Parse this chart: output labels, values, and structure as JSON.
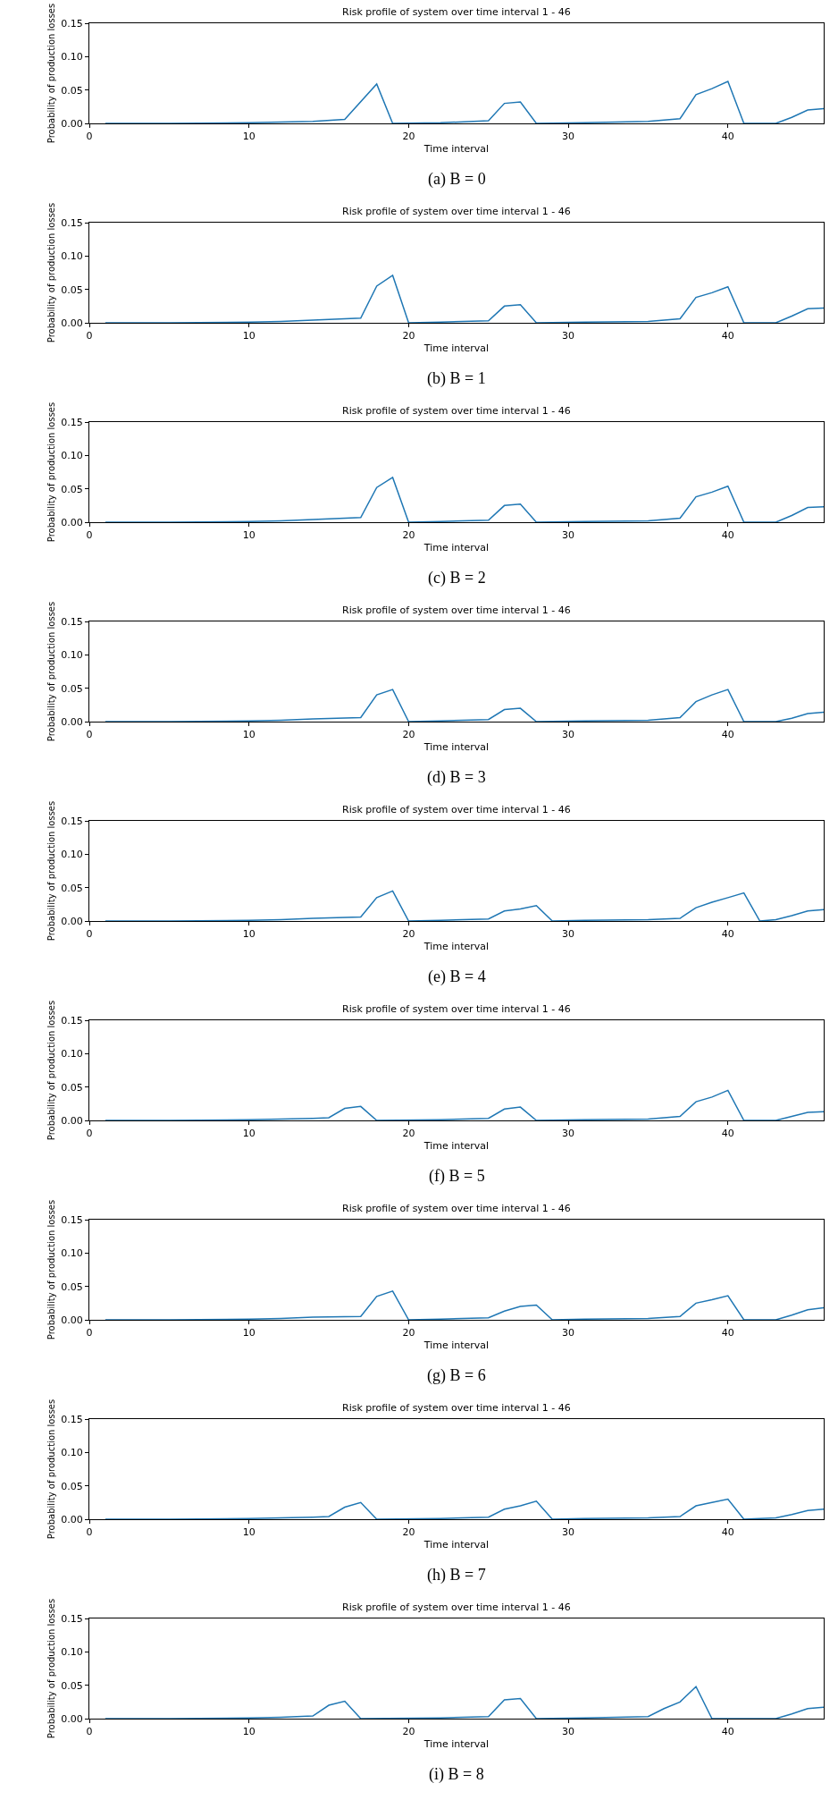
{
  "chart_data": [
    {
      "type": "line",
      "title": "Risk profile of system over time interval 1 - 46",
      "xlabel": "Time interval",
      "ylabel": "Probability of production losses",
      "annotations": [
        "(a) B = 0"
      ],
      "xlim": [
        0,
        46
      ],
      "xticks": [
        0,
        10,
        20,
        30,
        40
      ],
      "ylim": [
        0,
        0.15
      ],
      "yticks": [
        {
          "value": 0,
          "label": "0.00"
        },
        {
          "value": 0.05,
          "label": "0.05"
        },
        {
          "value": 0.1,
          "label": "0.10"
        },
        {
          "value": 0.15,
          "label": "0.15"
        }
      ],
      "series": [
        {
          "color": "#1f77b4",
          "x": [
            1,
            5,
            10,
            12,
            14,
            16,
            18,
            19,
            22,
            25,
            26,
            27,
            28,
            31,
            35,
            37,
            38,
            39,
            40,
            41,
            43,
            44,
            45,
            46
          ],
          "values": [
            0,
            0,
            0.001,
            0.002,
            0.003,
            0.006,
            0.059,
            0,
            0.001,
            0.004,
            0.03,
            0.032,
            0,
            0.001,
            0.003,
            0.007,
            0.043,
            0.052,
            0.063,
            0,
            0,
            0.009,
            0.02,
            0.022
          ]
        }
      ]
    },
    {
      "type": "line",
      "title": "Risk profile of system over time interval 1 - 46",
      "xlabel": "Time interval",
      "ylabel": "Probability of production losses",
      "annotations": [
        "(b) B = 1"
      ],
      "xlim": [
        0,
        46
      ],
      "xticks": [
        0,
        10,
        20,
        30,
        40
      ],
      "ylim": [
        0,
        0.15
      ],
      "yticks": [
        {
          "value": 0,
          "label": "0.00"
        },
        {
          "value": 0.05,
          "label": "0.05"
        },
        {
          "value": 0.1,
          "label": "0.10"
        },
        {
          "value": 0.15,
          "label": "0.15"
        }
      ],
      "series": [
        {
          "color": "#1f77b4",
          "x": [
            1,
            5,
            10,
            12,
            14,
            17,
            18,
            19,
            20,
            22,
            25,
            26,
            27,
            28,
            31,
            35,
            37,
            38,
            39,
            40,
            41,
            43,
            44,
            45,
            46
          ],
          "values": [
            0,
            0,
            0.001,
            0.002,
            0.004,
            0.007,
            0.055,
            0.071,
            0,
            0.001,
            0.003,
            0.025,
            0.027,
            0,
            0.001,
            0.002,
            0.006,
            0.038,
            0.045,
            0.054,
            0,
            0,
            0.01,
            0.021,
            0.022
          ]
        }
      ]
    },
    {
      "type": "line",
      "title": "Risk profile of system over time interval 1 - 46",
      "xlabel": "Time interval",
      "ylabel": "Probability of production losses",
      "annotations": [
        "(c) B = 2"
      ],
      "xlim": [
        0,
        46
      ],
      "xticks": [
        0,
        10,
        20,
        30,
        40
      ],
      "ylim": [
        0,
        0.15
      ],
      "yticks": [
        {
          "value": 0,
          "label": "0.00"
        },
        {
          "value": 0.05,
          "label": "0.05"
        },
        {
          "value": 0.1,
          "label": "0.10"
        },
        {
          "value": 0.15,
          "label": "0.15"
        }
      ],
      "series": [
        {
          "color": "#1f77b4",
          "x": [
            1,
            5,
            10,
            12,
            14,
            17,
            18,
            19,
            20,
            22,
            25,
            26,
            27,
            28,
            31,
            35,
            37,
            38,
            39,
            40,
            41,
            43,
            44,
            45,
            46
          ],
          "values": [
            0,
            0,
            0.001,
            0.002,
            0.004,
            0.007,
            0.052,
            0.067,
            0,
            0.001,
            0.003,
            0.025,
            0.027,
            0,
            0.001,
            0.002,
            0.006,
            0.038,
            0.045,
            0.054,
            0,
            0,
            0.01,
            0.022,
            0.023
          ]
        }
      ]
    },
    {
      "type": "line",
      "title": "Risk profile of system over time interval 1 - 46",
      "xlabel": "Time interval",
      "ylabel": "Probability of production losses",
      "annotations": [
        "(d) B = 3"
      ],
      "xlim": [
        0,
        46
      ],
      "xticks": [
        0,
        10,
        20,
        30,
        40
      ],
      "ylim": [
        0,
        0.15
      ],
      "yticks": [
        {
          "value": 0,
          "label": "0.00"
        },
        {
          "value": 0.05,
          "label": "0.05"
        },
        {
          "value": 0.1,
          "label": "0.10"
        },
        {
          "value": 0.15,
          "label": "0.15"
        }
      ],
      "series": [
        {
          "color": "#1f77b4",
          "x": [
            1,
            5,
            10,
            12,
            14,
            17,
            18,
            19,
            20,
            22,
            25,
            26,
            27,
            28,
            31,
            35,
            37,
            38,
            39,
            40,
            41,
            43,
            44,
            45,
            46
          ],
          "values": [
            0,
            0,
            0.001,
            0.002,
            0.004,
            0.006,
            0.04,
            0.048,
            0,
            0.001,
            0.003,
            0.018,
            0.02,
            0,
            0.001,
            0.002,
            0.006,
            0.03,
            0.04,
            0.048,
            0,
            0,
            0.005,
            0.012,
            0.014
          ]
        }
      ]
    },
    {
      "type": "line",
      "title": "Risk profile of system over time interval 1 - 46",
      "xlabel": "Time interval",
      "ylabel": "Probability of production losses",
      "annotations": [
        "(e) B = 4"
      ],
      "xlim": [
        0,
        46
      ],
      "xticks": [
        0,
        10,
        20,
        30,
        40
      ],
      "ylim": [
        0,
        0.15
      ],
      "yticks": [
        {
          "value": 0,
          "label": "0.00"
        },
        {
          "value": 0.05,
          "label": "0.05"
        },
        {
          "value": 0.1,
          "label": "0.10"
        },
        {
          "value": 0.15,
          "label": "0.15"
        }
      ],
      "series": [
        {
          "color": "#1f77b4",
          "x": [
            1,
            5,
            10,
            12,
            14,
            17,
            18,
            19,
            20,
            22,
            25,
            26,
            27,
            28,
            29,
            31,
            35,
            37,
            38,
            39,
            40,
            41,
            42,
            43,
            44,
            45,
            46
          ],
          "values": [
            0,
            0,
            0.001,
            0.002,
            0.004,
            0.006,
            0.035,
            0.045,
            0,
            0.001,
            0.003,
            0.015,
            0.018,
            0.023,
            0,
            0.001,
            0.002,
            0.004,
            0.02,
            0.028,
            0.035,
            0.042,
            0,
            0.002,
            0.008,
            0.015,
            0.017
          ]
        }
      ]
    },
    {
      "type": "line",
      "title": "Risk profile of system over time interval 1 - 46",
      "xlabel": "Time interval",
      "ylabel": "Probability of production losses",
      "annotations": [
        "(f) B = 5"
      ],
      "xlim": [
        0,
        46
      ],
      "xticks": [
        0,
        10,
        20,
        30,
        40
      ],
      "ylim": [
        0,
        0.15
      ],
      "yticks": [
        {
          "value": 0,
          "label": "0.00"
        },
        {
          "value": 0.05,
          "label": "0.05"
        },
        {
          "value": 0.1,
          "label": "0.10"
        },
        {
          "value": 0.15,
          "label": "0.15"
        }
      ],
      "series": [
        {
          "color": "#1f77b4",
          "x": [
            1,
            5,
            10,
            12,
            14,
            15,
            16,
            17,
            18,
            22,
            25,
            26,
            27,
            28,
            31,
            35,
            37,
            38,
            39,
            40,
            41,
            43,
            44,
            45,
            46
          ],
          "values": [
            0,
            0,
            0.001,
            0.002,
            0.003,
            0.004,
            0.018,
            0.021,
            0,
            0.001,
            0.003,
            0.017,
            0.02,
            0,
            0.001,
            0.002,
            0.006,
            0.028,
            0.035,
            0.045,
            0,
            0,
            0.006,
            0.012,
            0.013
          ]
        }
      ]
    },
    {
      "type": "line",
      "title": "Risk profile of system over time interval 1 - 46",
      "xlabel": "Time interval",
      "ylabel": "Probability of production losses",
      "annotations": [
        "(g) B = 6"
      ],
      "xlim": [
        0,
        46
      ],
      "xticks": [
        0,
        10,
        20,
        30,
        40
      ],
      "ylim": [
        0,
        0.15
      ],
      "yticks": [
        {
          "value": 0,
          "label": "0.00"
        },
        {
          "value": 0.05,
          "label": "0.05"
        },
        {
          "value": 0.1,
          "label": "0.10"
        },
        {
          "value": 0.15,
          "label": "0.15"
        }
      ],
      "series": [
        {
          "color": "#1f77b4",
          "x": [
            1,
            5,
            10,
            12,
            14,
            17,
            18,
            19,
            20,
            22,
            25,
            26,
            27,
            28,
            29,
            31,
            35,
            37,
            38,
            39,
            40,
            41,
            43,
            44,
            45,
            46
          ],
          "values": [
            0,
            0,
            0.001,
            0.002,
            0.004,
            0.005,
            0.035,
            0.043,
            0,
            0.001,
            0.003,
            0.013,
            0.02,
            0.022,
            0,
            0.001,
            0.002,
            0.005,
            0.025,
            0.03,
            0.036,
            0,
            0,
            0.007,
            0.015,
            0.018
          ]
        }
      ]
    },
    {
      "type": "line",
      "title": "Risk profile of system over time interval 1 - 46",
      "xlabel": "Time interval",
      "ylabel": "Probability of production losses",
      "annotations": [
        "(h) B = 7"
      ],
      "xlim": [
        0,
        46
      ],
      "xticks": [
        0,
        10,
        20,
        30,
        40
      ],
      "ylim": [
        0,
        0.15
      ],
      "yticks": [
        {
          "value": 0,
          "label": "0.00"
        },
        {
          "value": 0.05,
          "label": "0.05"
        },
        {
          "value": 0.1,
          "label": "0.10"
        },
        {
          "value": 0.15,
          "label": "0.15"
        }
      ],
      "series": [
        {
          "color": "#1f77b4",
          "x": [
            1,
            5,
            10,
            12,
            14,
            15,
            16,
            17,
            18,
            22,
            25,
            26,
            27,
            28,
            29,
            31,
            35,
            37,
            38,
            39,
            40,
            41,
            43,
            44,
            45,
            46
          ],
          "values": [
            0,
            0,
            0.001,
            0.002,
            0.003,
            0.004,
            0.018,
            0.025,
            0,
            0.001,
            0.003,
            0.015,
            0.02,
            0.027,
            0,
            0.001,
            0.002,
            0.004,
            0.02,
            0.025,
            0.03,
            0,
            0.002,
            0.007,
            0.013,
            0.015
          ]
        }
      ]
    },
    {
      "type": "line",
      "title": "Risk profile of system over time interval 1 - 46",
      "xlabel": "Time interval",
      "ylabel": "Probability of production losses",
      "annotations": [
        "(i) B = 8"
      ],
      "xlim": [
        0,
        46
      ],
      "xticks": [
        0,
        10,
        20,
        30,
        40
      ],
      "ylim": [
        0,
        0.15
      ],
      "yticks": [
        {
          "value": 0,
          "label": "0.00"
        },
        {
          "value": 0.05,
          "label": "0.05"
        },
        {
          "value": 0.1,
          "label": "0.10"
        },
        {
          "value": 0.15,
          "label": "0.15"
        }
      ],
      "series": [
        {
          "color": "#1f77b4",
          "x": [
            1,
            5,
            10,
            12,
            14,
            15,
            16,
            17,
            22,
            25,
            26,
            27,
            28,
            31,
            35,
            36,
            37,
            38,
            39,
            43,
            44,
            45,
            46
          ],
          "values": [
            0,
            0,
            0.001,
            0.002,
            0.004,
            0.02,
            0.026,
            0,
            0.001,
            0.003,
            0.028,
            0.03,
            0,
            0.001,
            0.003,
            0.015,
            0.025,
            0.048,
            0,
            0,
            0.007,
            0.015,
            0.017
          ]
        }
      ]
    }
  ]
}
